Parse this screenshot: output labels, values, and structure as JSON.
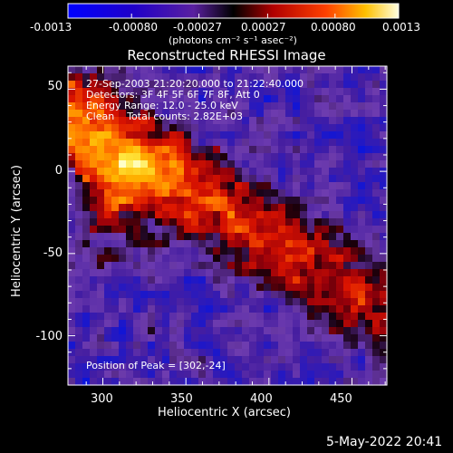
{
  "chart_data": {
    "type": "heatmap",
    "title": "Reconstructed RHESSI Image",
    "xlabel": "Heliocentric X (arcsec)",
    "ylabel": "Heliocentric Y (arcsec)",
    "xlim": [
      279,
      471
    ],
    "ylim": [
      -130,
      64
    ],
    "x_ticks": [
      300,
      350,
      400,
      450
    ],
    "y_ticks": [
      50,
      0,
      -50,
      -100
    ],
    "colorbar": {
      "range": [
        -0.0013,
        0.0013
      ],
      "tick_labels": [
        "-0.0013",
        "-0.00080",
        "-0.00027",
        "0.00027",
        "0.00080",
        "0.0013"
      ],
      "units_label": "(photons cm⁻² s⁻¹ asec⁻²)"
    },
    "annotations": {
      "time_range": "27-Sep-2003 21:20:20.000 to 21:22:40.000",
      "detectors": "Detectors: 3F 4F 5F 6F 7F 8F, Att 0",
      "energy_range": "Energy Range: 12.0 - 25.0 keV",
      "method_counts": "Clean    Total counts: 2.82E+03",
      "peak": "Position of Peak = [302,-24]"
    },
    "peak_position": [
      302,
      -24
    ],
    "footer_date": "5-May-2022 20:41"
  }
}
